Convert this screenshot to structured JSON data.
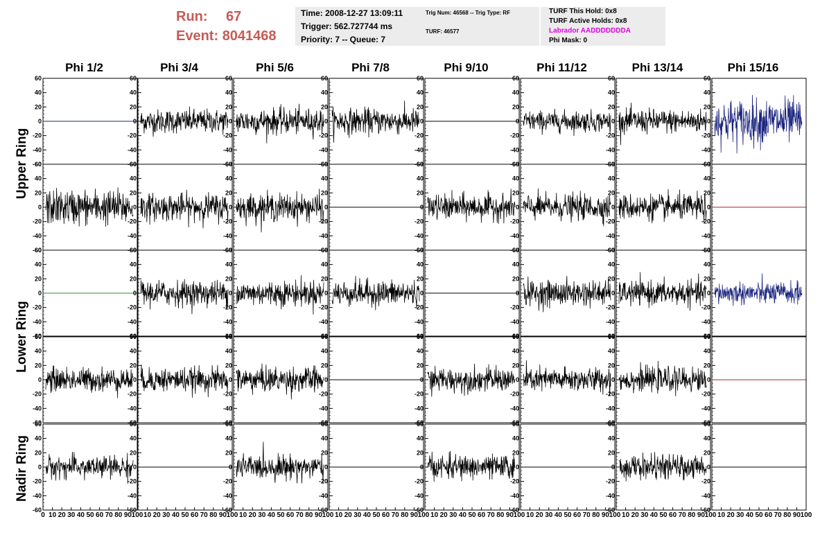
{
  "run_info": {
    "run_label": "Run:",
    "run_value": "67",
    "event_label": "Event:",
    "event_value": "8041468"
  },
  "time_box": {
    "time": "Time: 2008-12-27 13:09:11",
    "trigger": "Trigger: 562.727744 ms",
    "priority": "Priority: 7 -- Queue: 7"
  },
  "trig_box": {
    "line1": "Trig Num: 46568 -- Trig Type: RF",
    "line2": "TURF: 46577"
  },
  "turf_box": {
    "hold": "TURF This Hold: 0x8",
    "active": "TURF Active Holds: 0x8",
    "labrador": "Labrador AADDDDDDDA",
    "phi_mask": "Phi Mask: 0"
  },
  "phi_headers": [
    "Phi 1/2",
    "Phi 3/4",
    "Phi 5/6",
    "Phi 7/8",
    "Phi 9/10",
    "Phi 11/12",
    "Phi 13/14",
    "Phi 15/16"
  ],
  "ring_labels": {
    "upper": "Upper Ring",
    "lower": "Lower Ring",
    "nadir": "Nadir Ring"
  },
  "colors": {
    "run_text": "#c85a55",
    "labrador": "#e000e0",
    "blue_trace": "#1a237e",
    "red_trace": "#b22222",
    "green_trace": "#2e8b2e",
    "info_bg": "#ececec"
  },
  "chart_data": {
    "type": "line",
    "ylim": [
      -60,
      60
    ],
    "xlim": [
      0,
      100
    ],
    "y_ticks": [
      "60",
      "40",
      "20",
      "0",
      "-20",
      "-40",
      "-60"
    ],
    "x_ticks": [
      "0",
      "10",
      "20",
      "30",
      "40",
      "50",
      "60",
      "70",
      "80",
      "90",
      "100"
    ],
    "grid": false,
    "rows": [
      [
        "flat-blue",
        "noise",
        "noise",
        "noise",
        "flat-black",
        "noise",
        "noise",
        "noise-blue-strong"
      ],
      [
        "noise-strong",
        "noise",
        "noise",
        "flat-black",
        "noise",
        "noise",
        "noise",
        "flat-red"
      ],
      [
        "flat-green",
        "noise",
        "noise",
        "noise",
        "flat-black",
        "noise",
        "noise",
        "noise-blue"
      ],
      [
        "noise",
        "noise",
        "noise",
        "flat-black",
        "noise",
        "noise",
        "noise",
        "flat-red"
      ],
      [
        "noise",
        "flat-black",
        "noise",
        "flat-black",
        "noise",
        "flat-black",
        "noise",
        "flat-black"
      ]
    ],
    "panel_amplitudes": [
      [
        0,
        15,
        16,
        16,
        0,
        13,
        15,
        28
      ],
      [
        22,
        17,
        17,
        0,
        16,
        16,
        16,
        0
      ],
      [
        0,
        16,
        16,
        16,
        0,
        16,
        15,
        14
      ],
      [
        15,
        15,
        16,
        0,
        15,
        15,
        15,
        0
      ],
      [
        14,
        0,
        15,
        0,
        15,
        0,
        15,
        0
      ]
    ]
  }
}
